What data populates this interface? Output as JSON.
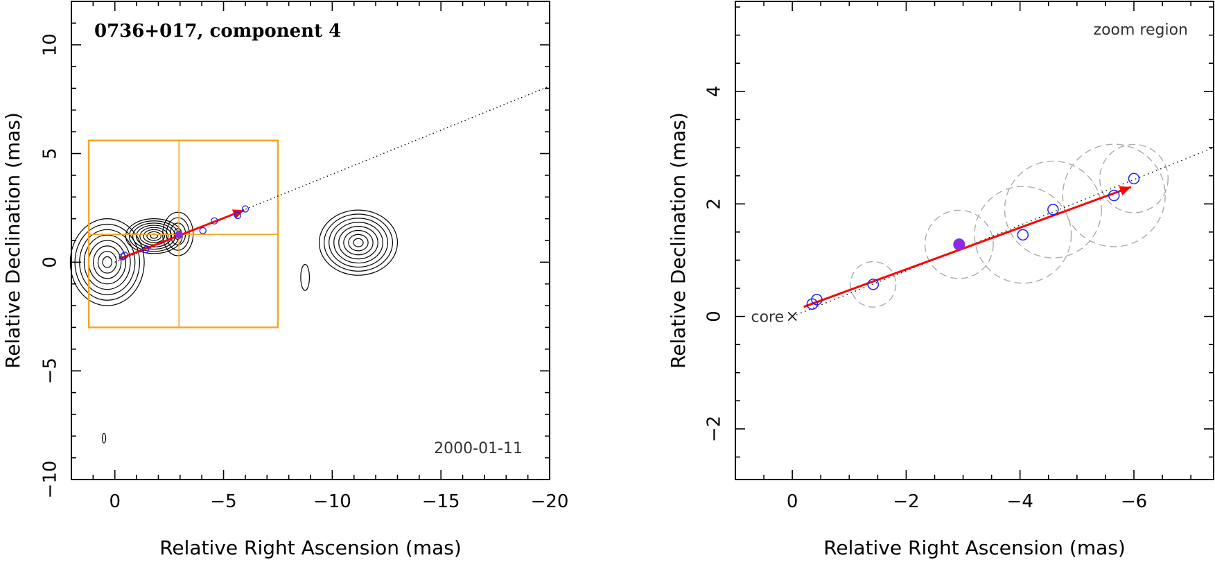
{
  "chart_data": [
    {
      "type": "scatter",
      "title": "0736+017, component 4",
      "date": "2000-01-11",
      "xlabel": "Relative Right Ascension (mas)",
      "ylabel": "Relative Declination (mas)",
      "xlim": [
        2,
        -20
      ],
      "ylim": [
        -10,
        12
      ],
      "xticks": [
        0,
        -5,
        -10,
        -15,
        -20
      ],
      "yticks": [
        -10,
        -5,
        0,
        5,
        10
      ],
      "xtick_labels": [
        "0",
        "−5",
        "−10",
        "−15",
        "−20"
      ],
      "ytick_labels": [
        "−10",
        "−5",
        "0",
        "5",
        "10"
      ],
      "component_positions": [
        {
          "x": -0.35,
          "y": 0.25,
          "filled": false
        },
        {
          "x": -0.45,
          "y": 0.32,
          "filled": false
        },
        {
          "x": -1.42,
          "y": 0.58,
          "filled": false
        },
        {
          "x": -2.95,
          "y": 1.28,
          "filled": true
        },
        {
          "x": -4.05,
          "y": 1.45,
          "filled": false
        },
        {
          "x": -4.58,
          "y": 1.9,
          "filled": false
        },
        {
          "x": -5.65,
          "y": 2.15,
          "filled": false
        },
        {
          "x": -6.0,
          "y": 2.45,
          "filled": false
        }
      ],
      "motion_vector": {
        "start": [
          -0.2,
          0.15
        ],
        "end": [
          -5.95,
          2.4
        ]
      },
      "direction_line": {
        "start": [
          0,
          0
        ],
        "end": [
          -20,
          8.1
        ]
      },
      "zoom_box": {
        "x_range": [
          1.2,
          -7.5
        ],
        "y_range": [
          -3.0,
          5.6
        ],
        "crosshair": [
          -2.95,
          1.28
        ]
      },
      "contour_islands": [
        {
          "cx": 0.35,
          "cy": 0.0,
          "rx": 1.7,
          "ry": 2.0
        },
        {
          "cx": -1.8,
          "cy": 1.2,
          "rx": 1.3,
          "ry": 0.8
        },
        {
          "cx": -2.9,
          "cy": 1.3,
          "rx": 0.7,
          "ry": 1.0
        },
        {
          "cx": -8.75,
          "cy": -0.7,
          "rx": 0.2,
          "ry": 0.6
        },
        {
          "cx": -11.2,
          "cy": 0.9,
          "rx": 1.8,
          "ry": 1.5
        },
        {
          "cx": 0.5,
          "cy": -8.1,
          "rx": 0.08,
          "ry": 0.22
        }
      ],
      "colors": {
        "contour": "#000000",
        "box": "#f5a623",
        "vector": "#ff0000",
        "markers": "#2020ee",
        "filled_marker": "#8a2be2"
      }
    },
    {
      "type": "scatter",
      "title": "zoom region",
      "xlabel": "Relative Right Ascension (mas)",
      "ylabel": "Relative Declination (mas)",
      "xlim": [
        1.0,
        -7.4
      ],
      "ylim": [
        -2.9,
        5.6
      ],
      "xticks": [
        0,
        -2,
        -4,
        -6
      ],
      "yticks": [
        -2,
        0,
        2,
        4
      ],
      "xtick_labels": [
        "0",
        "−2",
        "−4",
        "−6"
      ],
      "ytick_labels": [
        "−2",
        "0",
        "2",
        "4"
      ],
      "core_label": "core",
      "core_position": [
        0,
        0
      ],
      "component_positions": [
        {
          "x": -0.35,
          "y": 0.22,
          "filled": false
        },
        {
          "x": -0.43,
          "y": 0.3,
          "filled": false
        },
        {
          "x": -1.42,
          "y": 0.57,
          "filled": false
        },
        {
          "x": -2.93,
          "y": 1.28,
          "filled": true
        },
        {
          "x": -4.05,
          "y": 1.45,
          "filled": false
        },
        {
          "x": -4.58,
          "y": 1.9,
          "filled": false
        },
        {
          "x": -5.65,
          "y": 2.15,
          "filled": false
        },
        {
          "x": -6.0,
          "y": 2.45,
          "filled": false
        }
      ],
      "component_sizes": [
        {
          "x": -1.42,
          "y": 0.57,
          "r": 0.4
        },
        {
          "x": -2.93,
          "y": 1.28,
          "r": 0.6
        },
        {
          "x": -4.05,
          "y": 1.45,
          "r": 0.85
        },
        {
          "x": -4.58,
          "y": 1.9,
          "r": 0.85
        },
        {
          "x": -5.65,
          "y": 2.15,
          "r": 0.9
        },
        {
          "x": -6.0,
          "y": 2.45,
          "r": 0.6
        }
      ],
      "motion_vector": {
        "start": [
          -0.2,
          0.17
        ],
        "end": [
          -5.95,
          2.3
        ]
      },
      "direction_line": {
        "start": [
          0,
          0
        ],
        "end": [
          -7.4,
          3.0
        ]
      },
      "colors": {
        "vector": "#ff0000",
        "markers": "#2020ee",
        "filled_marker": "#8a2be2",
        "size_circles": "#aaaaaa"
      }
    }
  ]
}
